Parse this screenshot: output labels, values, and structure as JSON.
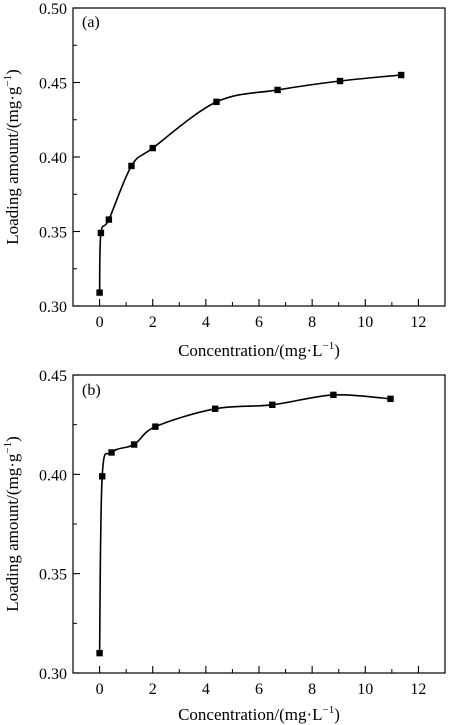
{
  "chart_data": [
    {
      "type": "scatter",
      "panel_label": "(a)",
      "xlabel": "Concentration/(mg·L",
      "xlabel_sup": "−1",
      "xlabel_tail": ")",
      "ylabel": "Loading amount/(mg·g",
      "ylabel_sup": "−1",
      "ylabel_tail": ")",
      "xlim": [
        -1,
        13
      ],
      "ylim": [
        0.3,
        0.5
      ],
      "xticks": [
        "0",
        "2",
        "4",
        "6",
        "8",
        "10",
        "12"
      ],
      "yticks": [
        "0.30",
        "0.35",
        "0.40",
        "0.45",
        "0.50"
      ],
      "series": [
        {
          "x": [
            0.0,
            0.05,
            0.35,
            1.2,
            2.0,
            4.4,
            6.7,
            9.05,
            11.35
          ],
          "y": [
            0.309,
            0.349,
            0.358,
            0.394,
            0.406,
            0.437,
            0.445,
            0.451,
            0.455
          ],
          "fit_curve": true
        }
      ]
    },
    {
      "type": "scatter",
      "panel_label": "(b)",
      "xlabel": "Concentration/(mg·L",
      "xlabel_sup": "−1",
      "xlabel_tail": ")",
      "ylabel": "Loading amount/(mg·g",
      "ylabel_sup": "−1",
      "ylabel_tail": ")",
      "xlim": [
        -1,
        13
      ],
      "ylim": [
        0.3,
        0.45
      ],
      "xticks": [
        "0",
        "2",
        "4",
        "6",
        "8",
        "10",
        "12"
      ],
      "yticks": [
        "0.30",
        "0.35",
        "0.40",
        "0.45"
      ],
      "series": [
        {
          "x": [
            0.0,
            0.1,
            0.45,
            1.3,
            2.1,
            4.35,
            6.5,
            8.8,
            10.95
          ],
          "y": [
            0.31,
            0.399,
            0.411,
            0.415,
            0.424,
            0.433,
            0.435,
            0.44,
            0.438
          ],
          "fit_curve": true
        }
      ]
    }
  ]
}
